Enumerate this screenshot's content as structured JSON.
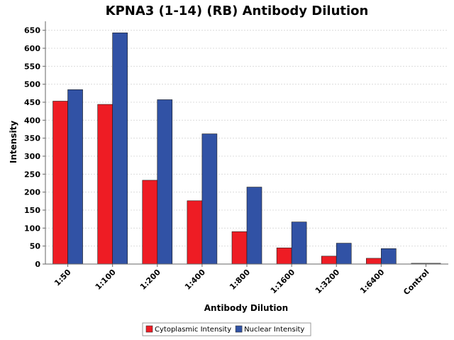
{
  "chart_data": {
    "type": "bar",
    "title": "KPNA3 (1-14) (RB) Antibody Dilution",
    "xlabel": "Antibody Dilution",
    "ylabel": "Intensity",
    "categories": [
      "1:50",
      "1:100",
      "1:200",
      "1:400",
      "1:800",
      "1:1600",
      "1:3200",
      "1:6400",
      "Control"
    ],
    "series": [
      {
        "name": "Cytoplasmic Intensity",
        "color": "#ee1c24",
        "values": [
          453,
          444,
          233,
          176,
          90,
          45,
          22,
          16,
          0
        ]
      },
      {
        "name": "Nuclear Intensity",
        "color": "#3152a5",
        "values": [
          485,
          643,
          457,
          362,
          214,
          117,
          58,
          43,
          0
        ]
      }
    ],
    "ylim": [
      0,
      675
    ],
    "yticks": [
      0,
      50,
      100,
      150,
      200,
      250,
      300,
      350,
      400,
      450,
      500,
      550,
      600,
      650
    ],
    "control_value": 3,
    "grid": true,
    "legend_position": "bottom"
  }
}
